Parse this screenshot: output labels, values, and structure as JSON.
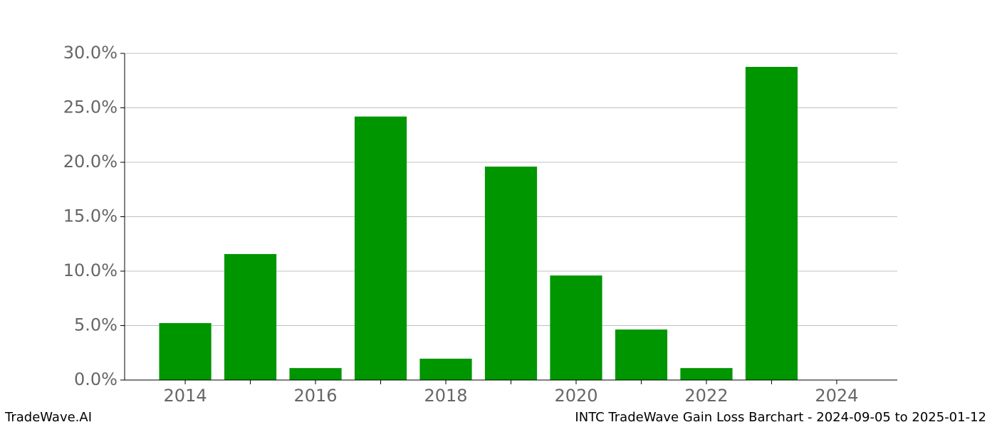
{
  "chart_data": {
    "type": "bar",
    "title": "INTC TradeWave Gain Loss Barchart - 2024-09-05 to 2025-01-12",
    "watermark": "TradeWave.AI",
    "x": [
      2014,
      2015,
      2016,
      2017,
      2018,
      2019,
      2020,
      2021,
      2022,
      2023
    ],
    "values": [
      5.23,
      11.57,
      1.1,
      24.2,
      1.96,
      19.6,
      9.6,
      4.64,
      1.1,
      28.76
    ],
    "color": "#009600",
    "bar_width": 0.8,
    "xlim": [
      2013.07,
      2024.93
    ],
    "xticks": [
      2014,
      2016,
      2018,
      2020,
      2022,
      2024
    ],
    "x_minor_ticks": [
      2015,
      2017,
      2019,
      2021,
      2023
    ],
    "ylim": [
      0,
      30
    ],
    "yticks": [
      {
        "value": 0,
        "label": "0.0%"
      },
      {
        "value": 5,
        "label": "5.0%"
      },
      {
        "value": 10,
        "label": "10.0%"
      },
      {
        "value": 15,
        "label": "15.0%"
      },
      {
        "value": 20,
        "label": "20.0%"
      },
      {
        "value": 25,
        "label": "25.0%"
      },
      {
        "value": 30,
        "label": "30.0%"
      }
    ],
    "grid": true
  }
}
